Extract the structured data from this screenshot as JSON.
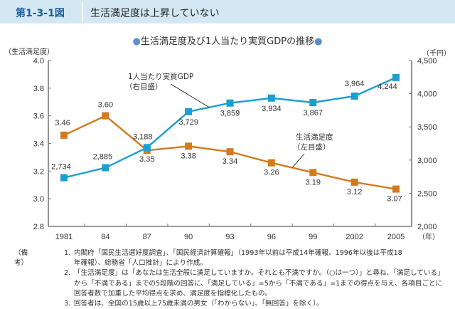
{
  "header": {
    "figure_number": "第1-3-1図",
    "figure_title": "生活満足度は上昇していない"
  },
  "chart_data": {
    "type": "line",
    "title": "生活満足度及び1人当たり実質GDPの推移",
    "title_marker": "●",
    "xlabel": "（年）",
    "categories": [
      "1981",
      "84",
      "87",
      "90",
      "93",
      "96",
      "99",
      "2002",
      "2005"
    ],
    "y_left": {
      "label": "（生活満足度）",
      "range": [
        2.8,
        4.0
      ],
      "ticks": [
        "4.0",
        "3.8",
        "3.6",
        "3.4",
        "3.2",
        "3.0",
        "2.8"
      ]
    },
    "y_right": {
      "label": "（千円）",
      "range": [
        2000,
        4500
      ],
      "ticks": [
        "4,500",
        "4,000",
        "3,500",
        "3,000",
        "2,500",
        "2,000"
      ]
    },
    "series": [
      {
        "name": "生活満足度",
        "annotation": [
          "生活満足度",
          "（左目盛）"
        ],
        "axis": "left",
        "color": "#d27a1e",
        "values": [
          3.46,
          3.6,
          3.35,
          3.38,
          3.34,
          3.26,
          3.19,
          3.12,
          3.07
        ],
        "labels": [
          "3.46",
          "3.60",
          "3.35",
          "3.38",
          "3.34",
          "3.26",
          "3.19",
          "3.12",
          "3.07"
        ]
      },
      {
        "name": "1人当たり実質GDP",
        "annotation": [
          "1人当たり実質GDP",
          "（右目盛）"
        ],
        "axis": "right",
        "color": "#1a9fd0",
        "values": [
          2734,
          2885,
          3188,
          3729,
          3859,
          3934,
          3867,
          3964,
          4244
        ],
        "labels": [
          "2,734",
          "2,885",
          "3,188",
          "3,729",
          "3,859",
          "3,934",
          "3,867",
          "3,964",
          "4,244"
        ]
      }
    ],
    "grid": false,
    "legend": "inline-annotations"
  },
  "notes": {
    "label": "（備考）",
    "items": [
      {
        "num": "1.",
        "lines": [
          "内閣府「国民生活選好度調査」、「国民経済計算確報」（1993年以前は平成14年確報、1996年以後は平成18",
          "年確報）、総務省「人口推計」により作成。"
        ]
      },
      {
        "num": "2.",
        "lines": [
          "「生活満足度」は「あなたは生活全般に満足していますか。それとも不満ですか。（○は一つ）」と尋ね、「満足している」",
          "から「不満である」までの5段階の回答に、「満足している」=5から「不満である」=1までの得点を与え、各項目ごとに",
          "回答者数で加重した平均得点を求め、満足度を指標化したもの。"
        ]
      },
      {
        "num": "3.",
        "lines": [
          "回答者は、全国の15歳以上75歳未満の男女（「わからない」、「無回答」を除く）。"
        ]
      }
    ]
  }
}
